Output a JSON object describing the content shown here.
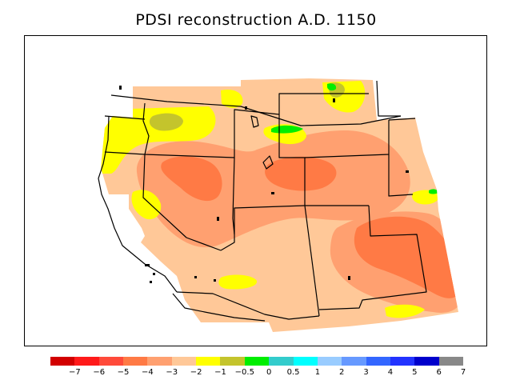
{
  "title": "PDSI reconstruction A.D. 1150",
  "legend": {
    "colors": [
      "#d20000",
      "#ff1a1a",
      "#ff4a3a",
      "#ff7a45",
      "#ffa070",
      "#ffc898",
      "#ffff00",
      "#c4c42c",
      "#00ee00",
      "#33cccc",
      "#00ffff",
      "#99ccff",
      "#6699ff",
      "#3366ff",
      "#2233ff",
      "#0000cc",
      "#888888"
    ],
    "ticks": [
      "−7",
      "−6",
      "−5",
      "−4",
      "−3",
      "−2",
      "−1",
      "−0.5",
      "0",
      "0.5",
      "1",
      "2",
      "3",
      "4",
      "5",
      "6",
      "7"
    ]
  },
  "colors": {
    "mild_drought": "#ffc898",
    "moderate_drought": "#ffa070",
    "severe_drought": "#ff7a45",
    "near_normal": "#ffff00",
    "incipient_dry": "#c4c42c",
    "wet": "#00ee00",
    "boundary": "#000000"
  }
}
